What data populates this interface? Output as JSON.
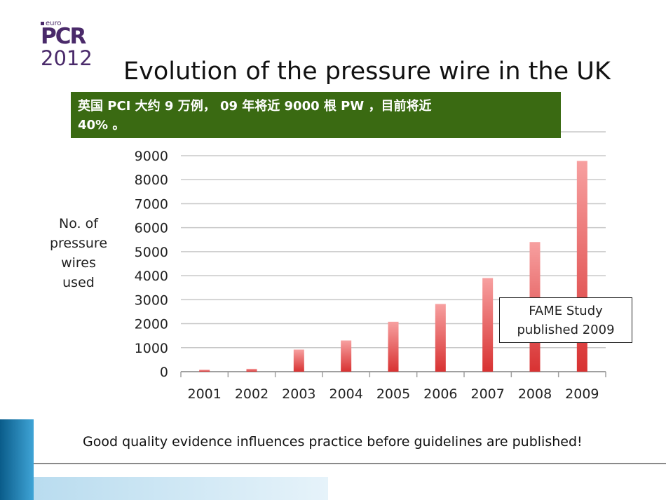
{
  "logo": {
    "small": "euro",
    "main": "PCR",
    "year": "2012"
  },
  "title": "Evolution of the pressure wire in the UK",
  "note_lines": [
    "英国 PCI  大约 9 万例， 09 年将近 9000 根 PW ，目前将近",
    "40% 。"
  ],
  "fame_lines": "FAME Study\npublished 2009",
  "bottom_text": "Good quality evidence influences practice before guidelines are published!",
  "chart_data": {
    "type": "bar",
    "categories": [
      "2001",
      "2002",
      "2003",
      "2004",
      "2005",
      "2006",
      "2007",
      "2008",
      "2009"
    ],
    "values": [
      80,
      120,
      920,
      1300,
      2080,
      2820,
      3900,
      5400,
      8780
    ],
    "ylabel": "No. of\npressure\nwires\nused",
    "ylim": [
      0,
      10000
    ],
    "yticks": [
      "0",
      "1000",
      "2000",
      "3000",
      "4000",
      "5000",
      "6000",
      "7000",
      "8000",
      "9000"
    ],
    "grid": true,
    "bar_color": "#e03a3a"
  }
}
